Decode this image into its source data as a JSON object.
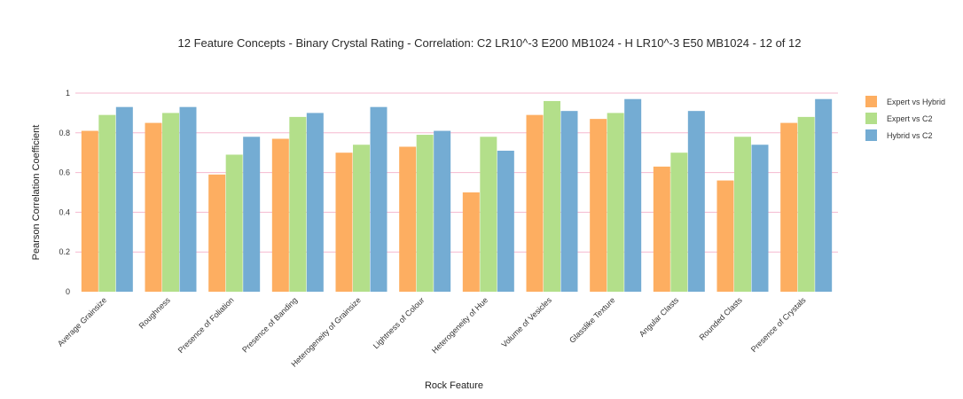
{
  "chart_data": {
    "type": "bar",
    "title": "12 Feature Concepts - Binary Crystal Rating - Correlation: C2 LR10^-3 E200 MB1024 - H LR10^-3 E50 MB1024 - 12 of 12",
    "xlabel": "Rock Feature",
    "ylabel": "Pearson Correlation Coefficient",
    "ylim": [
      0,
      1
    ],
    "yticks": [
      "0",
      "0.2",
      "0.4",
      "0.6",
      "0.8",
      "1"
    ],
    "grid": true,
    "legend_position": "top-right",
    "categories": [
      "Average Grainsize",
      "Roughness",
      "Presence of Foliation",
      "Presence of Banding",
      "Heterogeneity of Grainsize",
      "Lightness of Colour",
      "Heterogeneity of Hue",
      "Volume of Vesicles",
      "Glasslike Texture",
      "Angular Clasts",
      "Rounded Clasts",
      "Presence of Crystals"
    ],
    "series": [
      {
        "name": "Expert vs Hybrid",
        "color": "#fdae61",
        "values": [
          0.81,
          0.85,
          0.59,
          0.77,
          0.7,
          0.73,
          0.5,
          0.89,
          0.87,
          0.63,
          0.56,
          0.85
        ]
      },
      {
        "name": "Expert vs C2",
        "color": "#b3df8a",
        "values": [
          0.89,
          0.9,
          0.69,
          0.88,
          0.74,
          0.79,
          0.78,
          0.96,
          0.9,
          0.7,
          0.78,
          0.88
        ]
      },
      {
        "name": "Hybrid vs C2",
        "color": "#74acd3",
        "values": [
          0.93,
          0.93,
          0.78,
          0.9,
          0.93,
          0.81,
          0.71,
          0.91,
          0.97,
          0.91,
          0.74,
          0.97
        ]
      }
    ],
    "gridline_color": "#f5b8cf"
  }
}
